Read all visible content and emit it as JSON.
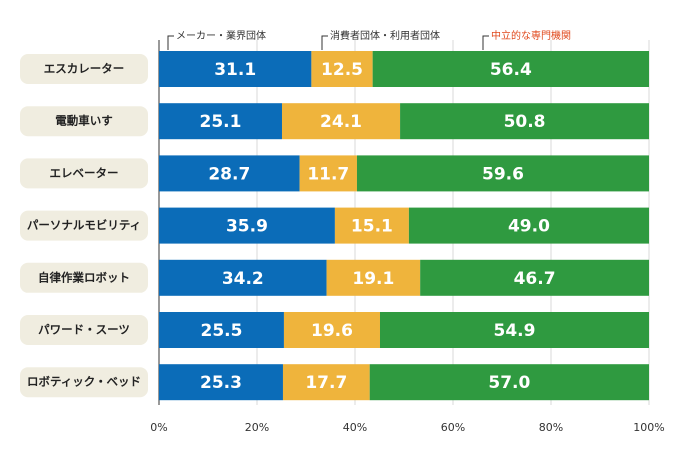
{
  "chart_data": {
    "type": "stacked_bar_horizontal",
    "categories": [
      "エスカレーター",
      "電動車いす",
      "エレベーター",
      "パーソナルモビリティ",
      "自律作業ロボット",
      "パワード・スーツ",
      "ロボティック・ベッド"
    ],
    "series": [
      {
        "name": "メーカー・業界団体",
        "color": "#0b6cb8",
        "legend_text_color": "#333333",
        "values": [
          31.1,
          25.1,
          28.7,
          35.9,
          34.2,
          25.5,
          25.3
        ],
        "value_labels": [
          "31.1",
          "25.1",
          "28.7",
          "35.9",
          "34.2",
          "25.5",
          "25.3"
        ]
      },
      {
        "name": "消費者団体・利用者団体",
        "color": "#efb43c",
        "legend_text_color": "#333333",
        "values": [
          12.5,
          24.1,
          11.7,
          15.1,
          19.1,
          19.6,
          17.7
        ],
        "value_labels": [
          "12.5",
          "24.1",
          "11.7",
          "15.1",
          "19.1",
          "19.6",
          "17.7"
        ]
      },
      {
        "name": "中立的な専門機関",
        "color": "#2f9a40",
        "legend_text_color": "#e0491c",
        "values": [
          56.4,
          50.8,
          59.6,
          49.0,
          46.7,
          54.9,
          57.0
        ],
        "value_labels": [
          "56.4",
          "50.8",
          "59.6",
          "49.0",
          "46.7",
          "54.9",
          "57.0"
        ]
      }
    ],
    "xlim": [
      0,
      100
    ],
    "xticks": [
      {
        "value": 0,
        "label": "0%"
      },
      {
        "value": 20,
        "label": "20%"
      },
      {
        "value": 40,
        "label": "40%"
      },
      {
        "value": 60,
        "label": "60%"
      },
      {
        "value": 80,
        "label": "80%"
      },
      {
        "value": 100,
        "label": "100%"
      }
    ],
    "grid": true
  }
}
